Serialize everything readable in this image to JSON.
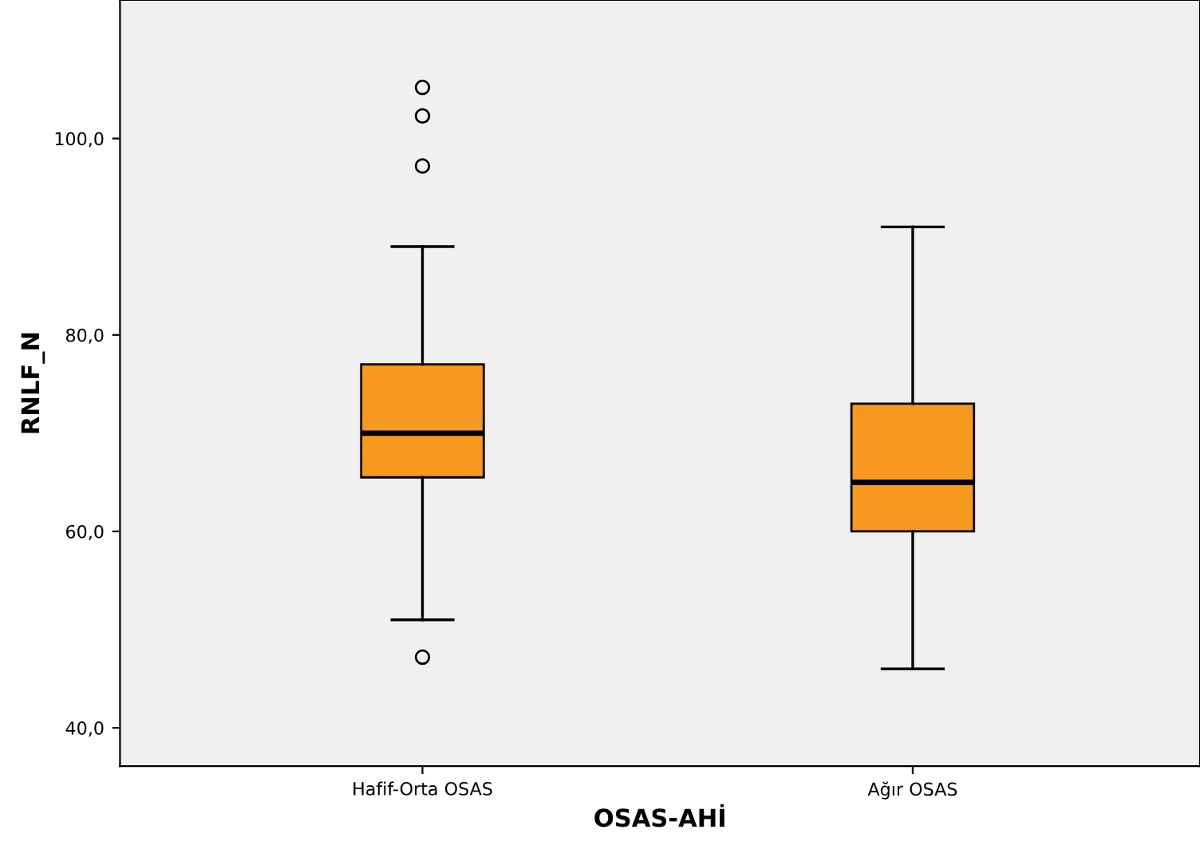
{
  "chart_data": {
    "type": "box",
    "xlabel": "OSAS-AHİ",
    "ylabel": "RNLF_N",
    "categories": [
      "Hafif-Orta OSAS",
      "Ağır OSAS"
    ],
    "boxes": [
      {
        "low": 51,
        "q1": 65.5,
        "median": 70,
        "q3": 77,
        "high": 89,
        "outliers": [
          105.2,
          102.3,
          97.2,
          47.2
        ]
      },
      {
        "low": 46,
        "q1": 60,
        "median": 65,
        "q3": 73,
        "high": 91
      }
    ],
    "color": "#f7991f",
    "ylim": [
      36.1,
      114.1
    ],
    "yticks": [
      {
        "value": 40,
        "label": "40,0"
      },
      {
        "value": 60,
        "label": "60,0"
      },
      {
        "value": 80,
        "label": "80,0"
      },
      {
        "value": 100,
        "label": "100,0"
      }
    ],
    "grid": false
  }
}
